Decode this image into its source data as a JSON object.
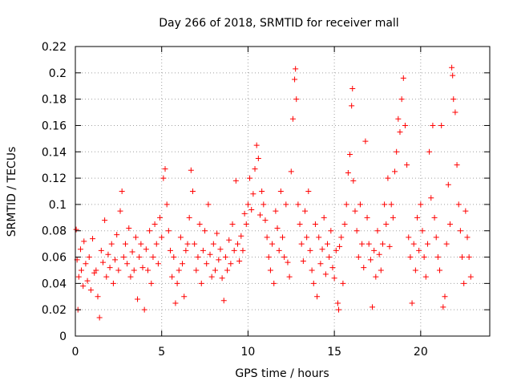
{
  "chart_data": {
    "type": "scatter",
    "title": "Day 266 of 2018, SRMTID for receiver mall",
    "xlabel": "GPS time / hours",
    "ylabel": "SRMTID / TECUs",
    "xlim": [
      0,
      24
    ],
    "ylim": [
      0,
      0.22
    ],
    "xticks": [
      0,
      5,
      10,
      15,
      20
    ],
    "yticks": [
      0,
      0.02,
      0.04,
      0.06,
      0.08,
      0.1,
      0.12,
      0.14,
      0.16,
      0.18,
      0.2,
      0.22
    ],
    "grid": "dotted",
    "marker": "+",
    "color": "#ff0000",
    "points": [
      [
        0.05,
        0.081
      ],
      [
        0.1,
        0.058
      ],
      [
        0.15,
        0.02
      ],
      [
        0.2,
        0.045
      ],
      [
        0.3,
        0.066
      ],
      [
        0.35,
        0.05
      ],
      [
        0.45,
        0.038
      ],
      [
        0.5,
        0.072
      ],
      [
        0.6,
        0.055
      ],
      [
        0.7,
        0.042
      ],
      [
        0.8,
        0.06
      ],
      [
        0.9,
        0.035
      ],
      [
        1.0,
        0.074
      ],
      [
        1.1,
        0.048
      ],
      [
        1.2,
        0.05
      ],
      [
        1.3,
        0.03
      ],
      [
        1.4,
        0.014
      ],
      [
        1.5,
        0.065
      ],
      [
        1.6,
        0.056
      ],
      [
        1.7,
        0.088
      ],
      [
        1.8,
        0.045
      ],
      [
        1.9,
        0.062
      ],
      [
        2.0,
        0.052
      ],
      [
        2.1,
        0.07
      ],
      [
        2.2,
        0.04
      ],
      [
        2.3,
        0.058
      ],
      [
        2.4,
        0.077
      ],
      [
        2.5,
        0.05
      ],
      [
        2.6,
        0.095
      ],
      [
        2.7,
        0.11
      ],
      [
        2.8,
        0.06
      ],
      [
        2.9,
        0.07
      ],
      [
        3.0,
        0.055
      ],
      [
        3.1,
        0.082
      ],
      [
        3.2,
        0.045
      ],
      [
        3.3,
        0.064
      ],
      [
        3.4,
        0.05
      ],
      [
        3.5,
        0.075
      ],
      [
        3.6,
        0.028
      ],
      [
        3.7,
        0.06
      ],
      [
        3.8,
        0.07
      ],
      [
        3.9,
        0.052
      ],
      [
        4.0,
        0.02
      ],
      [
        4.1,
        0.066
      ],
      [
        4.2,
        0.05
      ],
      [
        4.3,
        0.08
      ],
      [
        4.4,
        0.04
      ],
      [
        4.5,
        0.06
      ],
      [
        4.6,
        0.085
      ],
      [
        4.7,
        0.07
      ],
      [
        4.8,
        0.055
      ],
      [
        4.9,
        0.09
      ],
      [
        5.0,
        0.075
      ],
      [
        5.1,
        0.12
      ],
      [
        5.2,
        0.127
      ],
      [
        5.3,
        0.1
      ],
      [
        5.4,
        0.08
      ],
      [
        5.5,
        0.065
      ],
      [
        5.6,
        0.045
      ],
      [
        5.7,
        0.06
      ],
      [
        5.8,
        0.025
      ],
      [
        5.9,
        0.04
      ],
      [
        6.0,
        0.05
      ],
      [
        6.1,
        0.075
      ],
      [
        6.2,
        0.055
      ],
      [
        6.3,
        0.03
      ],
      [
        6.4,
        0.065
      ],
      [
        6.5,
        0.07
      ],
      [
        6.6,
        0.09
      ],
      [
        6.7,
        0.126
      ],
      [
        6.8,
        0.11
      ],
      [
        6.9,
        0.07
      ],
      [
        7.0,
        0.05
      ],
      [
        7.1,
        0.06
      ],
      [
        7.2,
        0.085
      ],
      [
        7.3,
        0.04
      ],
      [
        7.4,
        0.065
      ],
      [
        7.5,
        0.08
      ],
      [
        7.6,
        0.055
      ],
      [
        7.7,
        0.1
      ],
      [
        7.8,
        0.062
      ],
      [
        7.9,
        0.045
      ],
      [
        8.0,
        0.07
      ],
      [
        8.1,
        0.05
      ],
      [
        8.2,
        0.078
      ],
      [
        8.3,
        0.058
      ],
      [
        8.4,
        0.066
      ],
      [
        8.5,
        0.044
      ],
      [
        8.6,
        0.027
      ],
      [
        8.7,
        0.06
      ],
      [
        8.8,
        0.05
      ],
      [
        8.9,
        0.073
      ],
      [
        9.0,
        0.055
      ],
      [
        9.1,
        0.085
      ],
      [
        9.2,
        0.065
      ],
      [
        9.3,
        0.118
      ],
      [
        9.4,
        0.07
      ],
      [
        9.5,
        0.057
      ],
      [
        9.6,
        0.076
      ],
      [
        9.7,
        0.065
      ],
      [
        9.8,
        0.093
      ],
      [
        9.9,
        0.085
      ],
      [
        10.0,
        0.1
      ],
      [
        10.1,
        0.12
      ],
      [
        10.2,
        0.096
      ],
      [
        10.3,
        0.108
      ],
      [
        10.4,
        0.127
      ],
      [
        10.5,
        0.145
      ],
      [
        10.6,
        0.135
      ],
      [
        10.7,
        0.092
      ],
      [
        10.8,
        0.11
      ],
      [
        10.9,
        0.1
      ],
      [
        11.0,
        0.088
      ],
      [
        11.1,
        0.075
      ],
      [
        11.2,
        0.06
      ],
      [
        11.3,
        0.05
      ],
      [
        11.4,
        0.07
      ],
      [
        11.5,
        0.04
      ],
      [
        11.6,
        0.095
      ],
      [
        11.7,
        0.082
      ],
      [
        11.8,
        0.065
      ],
      [
        11.9,
        0.11
      ],
      [
        12.0,
        0.075
      ],
      [
        12.1,
        0.06
      ],
      [
        12.2,
        0.1
      ],
      [
        12.3,
        0.056
      ],
      [
        12.4,
        0.045
      ],
      [
        12.5,
        0.125
      ],
      [
        12.6,
        0.165
      ],
      [
        12.7,
        0.195
      ],
      [
        12.75,
        0.203
      ],
      [
        12.8,
        0.18
      ],
      [
        12.9,
        0.1
      ],
      [
        13.0,
        0.085
      ],
      [
        13.1,
        0.07
      ],
      [
        13.2,
        0.057
      ],
      [
        13.3,
        0.095
      ],
      [
        13.4,
        0.075
      ],
      [
        13.5,
        0.11
      ],
      [
        13.6,
        0.065
      ],
      [
        13.7,
        0.05
      ],
      [
        13.8,
        0.04
      ],
      [
        13.9,
        0.085
      ],
      [
        14.0,
        0.03
      ],
      [
        14.1,
        0.075
      ],
      [
        14.2,
        0.055
      ],
      [
        14.3,
        0.066
      ],
      [
        14.4,
        0.09
      ],
      [
        14.5,
        0.047
      ],
      [
        14.6,
        0.07
      ],
      [
        14.7,
        0.06
      ],
      [
        14.8,
        0.08
      ],
      [
        14.9,
        0.052
      ],
      [
        15.0,
        0.044
      ],
      [
        15.1,
        0.065
      ],
      [
        15.2,
        0.025
      ],
      [
        15.25,
        0.02
      ],
      [
        15.3,
        0.068
      ],
      [
        15.4,
        0.075
      ],
      [
        15.5,
        0.04
      ],
      [
        15.6,
        0.085
      ],
      [
        15.7,
        0.1
      ],
      [
        15.8,
        0.124
      ],
      [
        15.9,
        0.138
      ],
      [
        16.0,
        0.175
      ],
      [
        16.05,
        0.188
      ],
      [
        16.1,
        0.118
      ],
      [
        16.2,
        0.095
      ],
      [
        16.3,
        0.08
      ],
      [
        16.4,
        0.06
      ],
      [
        16.5,
        0.1
      ],
      [
        16.6,
        0.07
      ],
      [
        16.7,
        0.052
      ],
      [
        16.8,
        0.148
      ],
      [
        16.9,
        0.09
      ],
      [
        17.0,
        0.07
      ],
      [
        17.1,
        0.058
      ],
      [
        17.2,
        0.022
      ],
      [
        17.3,
        0.065
      ],
      [
        17.4,
        0.045
      ],
      [
        17.5,
        0.08
      ],
      [
        17.6,
        0.062
      ],
      [
        17.7,
        0.05
      ],
      [
        17.8,
        0.07
      ],
      [
        17.9,
        0.1
      ],
      [
        18.0,
        0.085
      ],
      [
        18.1,
        0.12
      ],
      [
        18.2,
        0.068
      ],
      [
        18.3,
        0.1
      ],
      [
        18.4,
        0.09
      ],
      [
        18.5,
        0.125
      ],
      [
        18.6,
        0.14
      ],
      [
        18.7,
        0.165
      ],
      [
        18.8,
        0.155
      ],
      [
        18.9,
        0.18
      ],
      [
        19.0,
        0.196
      ],
      [
        19.1,
        0.16
      ],
      [
        19.2,
        0.13
      ],
      [
        19.3,
        0.075
      ],
      [
        19.4,
        0.06
      ],
      [
        19.5,
        0.025
      ],
      [
        19.6,
        0.07
      ],
      [
        19.7,
        0.05
      ],
      [
        19.8,
        0.09
      ],
      [
        19.9,
        0.065
      ],
      [
        20.0,
        0.1
      ],
      [
        20.1,
        0.08
      ],
      [
        20.2,
        0.06
      ],
      [
        20.3,
        0.045
      ],
      [
        20.4,
        0.07
      ],
      [
        20.5,
        0.14
      ],
      [
        20.6,
        0.105
      ],
      [
        20.7,
        0.16
      ],
      [
        20.8,
        0.09
      ],
      [
        20.9,
        0.075
      ],
      [
        21.0,
        0.06
      ],
      [
        21.1,
        0.05
      ],
      [
        21.2,
        0.16
      ],
      [
        21.3,
        0.022
      ],
      [
        21.4,
        0.03
      ],
      [
        21.5,
        0.07
      ],
      [
        21.6,
        0.115
      ],
      [
        21.7,
        0.085
      ],
      [
        21.8,
        0.204
      ],
      [
        21.85,
        0.198
      ],
      [
        21.9,
        0.18
      ],
      [
        22.0,
        0.17
      ],
      [
        22.1,
        0.13
      ],
      [
        22.2,
        0.1
      ],
      [
        22.3,
        0.08
      ],
      [
        22.4,
        0.06
      ],
      [
        22.5,
        0.04
      ],
      [
        22.6,
        0.095
      ],
      [
        22.7,
        0.075
      ],
      [
        22.8,
        0.06
      ],
      [
        22.9,
        0.045
      ]
    ]
  }
}
